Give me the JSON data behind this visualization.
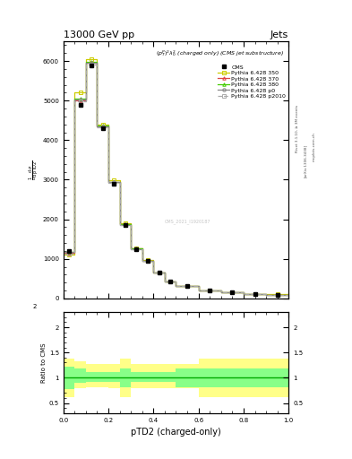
{
  "title_top": "13000 GeV pp",
  "title_right": "Jets",
  "annotation": "$(p_T^P)^2\\lambda_0^2$ (charged only) (CMS jet substructure)",
  "xlabel": "pTD2 (charged-only)",
  "ylabel_ratio": "Ratio to CMS",
  "xlim": [
    0,
    1
  ],
  "bin_edges": [
    0.0,
    0.05,
    0.1,
    0.15,
    0.2,
    0.25,
    0.3,
    0.35,
    0.4,
    0.45,
    0.5,
    0.6,
    0.7,
    0.8,
    0.9,
    1.0
  ],
  "cms_y": [
    1200,
    4900,
    5900,
    4300,
    2900,
    1850,
    1250,
    950,
    650,
    420,
    310,
    195,
    145,
    115,
    95
  ],
  "p350_y": [
    1100,
    5200,
    6050,
    4400,
    2980,
    1900,
    1270,
    970,
    660,
    430,
    315,
    200,
    150,
    120,
    98
  ],
  "p370_y": [
    1150,
    5000,
    5950,
    4350,
    2940,
    1870,
    1255,
    955,
    652,
    425,
    312,
    197,
    148,
    118,
    96
  ],
  "p380_y": [
    1170,
    5050,
    5980,
    4360,
    2950,
    1875,
    1258,
    958,
    654,
    426,
    313,
    198,
    149,
    119,
    97
  ],
  "p0_y": [
    1180,
    5020,
    5960,
    4340,
    2935,
    1865,
    1252,
    952,
    651,
    423,
    311,
    196,
    147,
    118,
    96
  ],
  "p2010_y": [
    1140,
    4980,
    5920,
    4320,
    2920,
    1855,
    1248,
    948,
    648,
    420,
    309,
    194,
    146,
    117,
    95
  ],
  "color_p350": "#cccc00",
  "color_p370": "#dd4444",
  "color_p380": "#44cc00",
  "color_p0": "#888888",
  "color_p2010": "#aaaaaa",
  "yellow_lo": [
    0.62,
    0.8,
    0.82,
    0.82,
    0.8,
    0.62,
    0.8,
    0.8,
    0.8,
    0.8,
    0.8,
    0.62,
    0.62,
    0.62,
    0.62
  ],
  "yellow_hi": [
    1.38,
    1.32,
    1.28,
    1.28,
    1.28,
    1.38,
    1.28,
    1.28,
    1.28,
    1.28,
    1.28,
    1.38,
    1.38,
    1.38,
    1.38
  ],
  "green_lo": [
    0.78,
    0.9,
    0.92,
    0.92,
    0.92,
    0.82,
    0.92,
    0.92,
    0.92,
    0.92,
    0.82,
    0.82,
    0.82,
    0.82,
    0.82
  ],
  "green_hi": [
    1.22,
    1.18,
    1.12,
    1.12,
    1.12,
    1.18,
    1.12,
    1.12,
    1.12,
    1.12,
    1.18,
    1.18,
    1.18,
    1.18,
    1.18
  ],
  "right_labels": [
    "Rivet 3.1.10, ≥ 3M events",
    "[arXiv:1306.3438]",
    "mcplots.cern.ch"
  ]
}
